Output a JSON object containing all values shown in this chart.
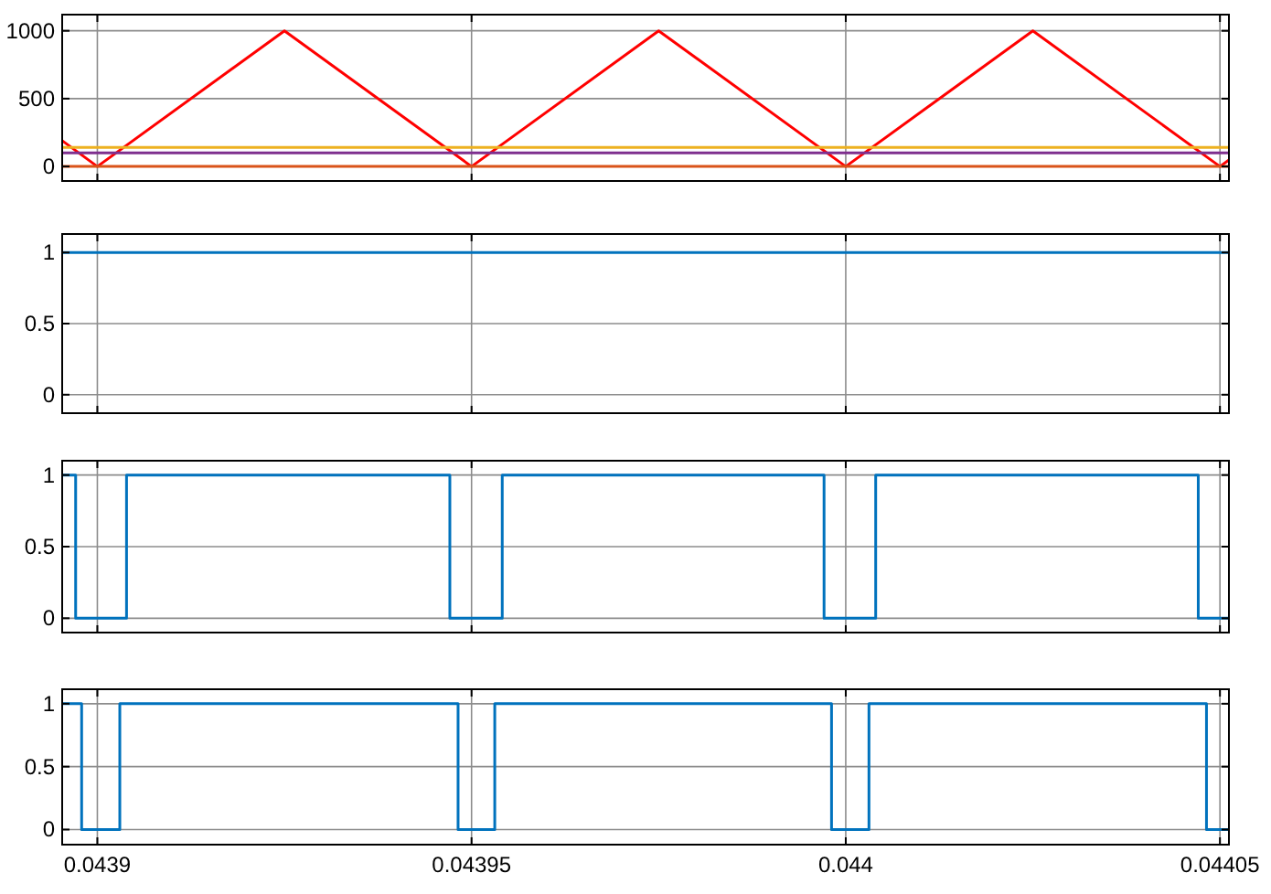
{
  "chart_data": [
    {
      "type": "line",
      "xlim": [
        0.0438953,
        0.0440512
      ],
      "xticks": [
        {
          "value": 0.0439,
          "label": null
        },
        {
          "value": 0.04395,
          "label": null
        },
        {
          "value": 0.044,
          "label": null
        },
        {
          "value": 0.04405,
          "label": null
        }
      ],
      "ylim": [
        -107,
        1119
      ],
      "yticks": [
        0,
        500,
        1000
      ],
      "grid": true,
      "tick_labels": "y",
      "series": [
        {
          "color": "#ff0000",
          "x": [
            0.0438953,
            0.0439,
            0.043925,
            0.04395,
            0.043975,
            0.044,
            0.044025,
            0.04405,
            0.0440512
          ],
          "values": [
            190,
            0,
            1000,
            0,
            1000,
            0,
            1000,
            0,
            48
          ]
        },
        {
          "color": "#edb120",
          "x": [
            0.0438953,
            0.0440512
          ],
          "values": [
            140,
            140
          ]
        },
        {
          "color": "#7e2f8e",
          "x": [
            0.0438953,
            0.0440512
          ],
          "values": [
            100,
            100
          ]
        },
        {
          "color": "#d95319",
          "x": [
            0.0438953,
            0.0440512
          ],
          "values": [
            0,
            0
          ]
        }
      ]
    },
    {
      "type": "step",
      "xlim": [
        0.0438953,
        0.0440512
      ],
      "xticks": [
        {
          "value": 0.0439,
          "label": null
        },
        {
          "value": 0.04395,
          "label": null
        },
        {
          "value": 0.044,
          "label": null
        },
        {
          "value": 0.04405,
          "label": null
        }
      ],
      "ylim": [
        -0.13,
        1.13
      ],
      "yticks": [
        0,
        0.5,
        1
      ],
      "grid": true,
      "tick_labels": "y",
      "series": [
        {
          "color": "#0072bd",
          "x": [
            0.0438953,
            0.0440512
          ],
          "values": [
            1,
            1
          ]
        }
      ]
    },
    {
      "type": "step",
      "xlim": [
        0.0438953,
        0.0440512
      ],
      "xticks": [
        {
          "value": 0.0439,
          "label": null
        },
        {
          "value": 0.04395,
          "label": null
        },
        {
          "value": 0.044,
          "label": null
        },
        {
          "value": 0.04405,
          "label": null
        }
      ],
      "ylim": [
        -0.1,
        1.1
      ],
      "yticks": [
        0,
        0.5,
        1
      ],
      "grid": true,
      "tick_labels": "y",
      "series": [
        {
          "color": "#0072bd",
          "x": [
            0.0438953,
            0.0438971,
            0.0439039,
            0.0439471,
            0.0439541,
            0.0439971,
            0.044004,
            0.0440471,
            0.0440512
          ],
          "values": [
            1,
            0,
            1,
            0,
            1,
            0,
            1,
            0,
            0
          ]
        }
      ]
    },
    {
      "type": "step",
      "xlim": [
        0.0438953,
        0.0440512
      ],
      "xticks": [
        0.0439,
        0.04395,
        0.044,
        0.04405
      ],
      "ylim": [
        -0.12,
        1.115
      ],
      "yticks": [
        0,
        0.5,
        1
      ],
      "grid": true,
      "series": [
        {
          "color": "#0072bd",
          "x": [
            0.0438953,
            0.0438979,
            0.043903,
            0.0439482,
            0.0439531,
            0.0439981,
            0.0440031,
            0.0440482,
            0.0440512
          ],
          "values": [
            1,
            0,
            1,
            0,
            1,
            0,
            1,
            0,
            0
          ]
        }
      ]
    }
  ]
}
